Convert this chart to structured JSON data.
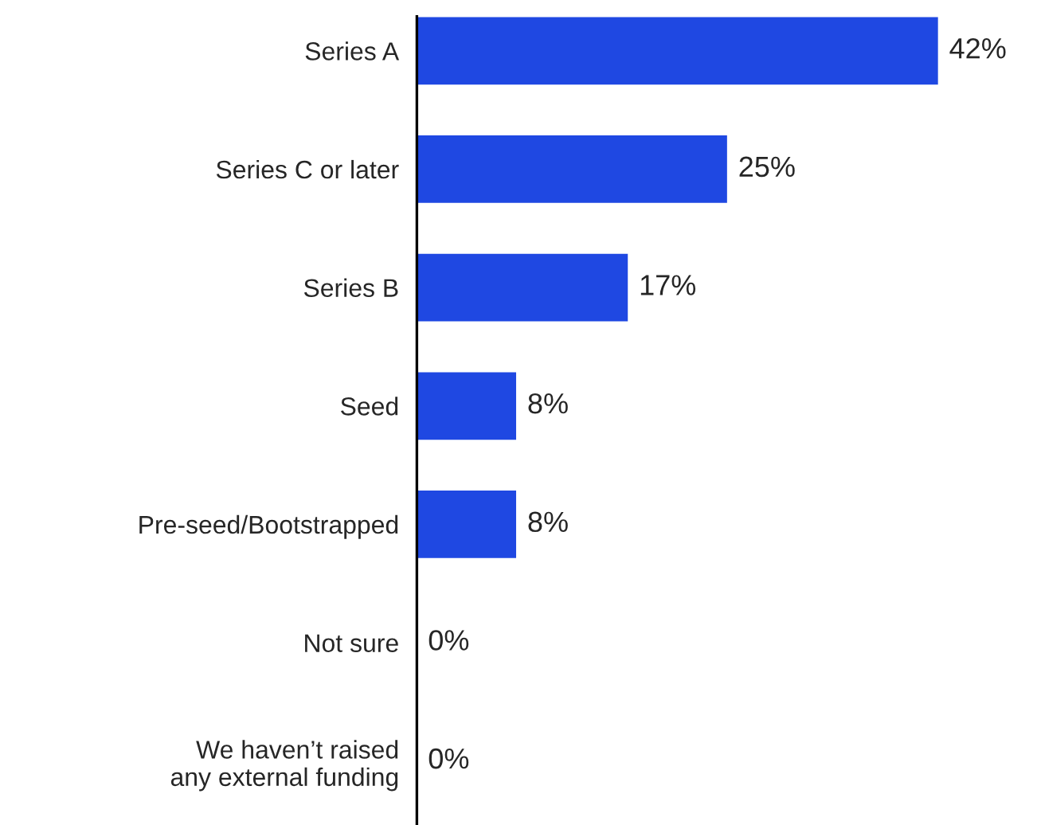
{
  "chart_data": {
    "type": "bar",
    "orientation": "horizontal",
    "categories": [
      "Series A",
      "Series C or later",
      "Series B",
      "Seed",
      "Pre-seed/Bootstrapped",
      "Not sure",
      "We haven’t raised\nany external funding"
    ],
    "values": [
      42,
      25,
      17,
      8,
      8,
      0,
      0
    ],
    "value_labels": [
      "42%",
      "25%",
      "17%",
      "8%",
      "8%",
      "0%",
      "0%"
    ],
    "color": "#1f48e2",
    "tick_labels": "y",
    "grid": false,
    "legend": false
  }
}
